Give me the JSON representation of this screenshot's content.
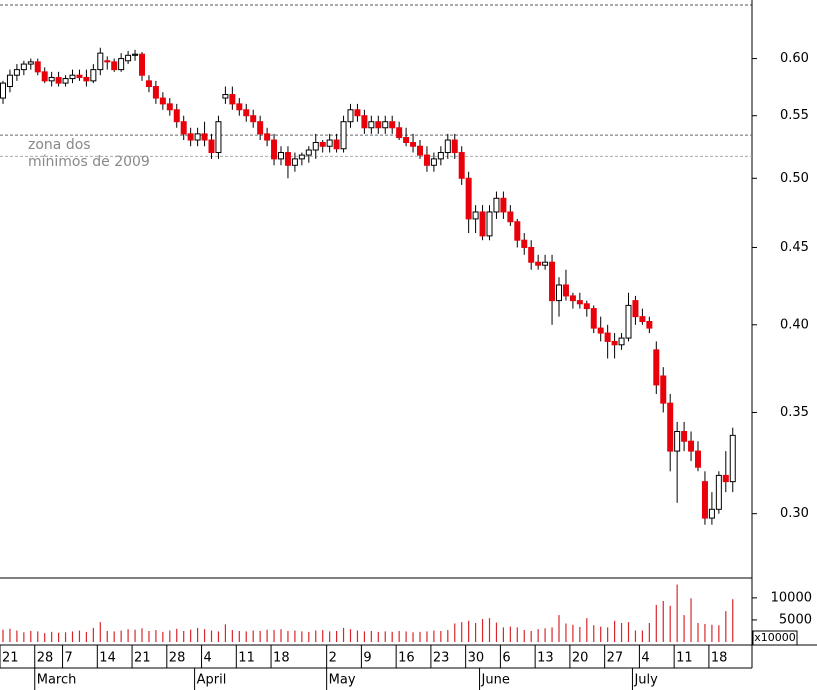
{
  "chart_data": {
    "type": "candlestick",
    "annotations": [
      "zona dos",
      "mínimos de 2009"
    ],
    "hlines": [
      0.534,
      0.517
    ],
    "ylim": [
      0.272,
      0.656
    ],
    "log_scale": true,
    "yticks": [
      {
        "value": 0.3,
        "label": "0.30"
      },
      0.35,
      {
        "value": 0.4,
        "label": "0.40"
      },
      0.45,
      {
        "value": 0.5,
        "label": "0.50"
      },
      0.55,
      {
        "value": 0.6,
        "label": "0.60"
      }
    ],
    "up_color": "#ffffff",
    "down_color": "#e8000b",
    "open": [
      0.565,
      0.575,
      0.585,
      0.59,
      0.595,
      0.597,
      0.588,
      0.58,
      0.583,
      0.578,
      0.582,
      0.585,
      0.583,
      0.58,
      0.59,
      0.598,
      0.597,
      0.59,
      0.598,
      0.603,
      0.604,
      0.58,
      0.575,
      0.565,
      0.56,
      0.555,
      0.545,
      0.535,
      0.53,
      0.535,
      0.53,
      0.52,
      0.565,
      0.568,
      0.56,
      0.555,
      0.55,
      0.545,
      0.535,
      0.53,
      0.515,
      0.52,
      0.51,
      0.515,
      0.518,
      0.522,
      0.528,
      0.525,
      0.53,
      0.523,
      0.545,
      0.555,
      0.55,
      0.54,
      0.545,
      0.54,
      0.545,
      0.54,
      0.532,
      0.528,
      0.525,
      0.518,
      0.51,
      0.515,
      0.52,
      0.53,
      0.52,
      0.5,
      0.47,
      0.475,
      0.458,
      0.475,
      0.485,
      0.475,
      0.468,
      0.455,
      0.45,
      0.44,
      0.438,
      0.44,
      0.415,
      0.425,
      0.418,
      0.415,
      0.413,
      0.41,
      0.398,
      0.395,
      0.39,
      0.388,
      0.392,
      0.415,
      0.405,
      0.402,
      0.385,
      0.37,
      0.355,
      0.33,
      0.34,
      0.335,
      0.33,
      0.315,
      0.298,
      0.302,
      0.318,
      0.315
    ],
    "high": [
      0.58,
      0.59,
      0.595,
      0.598,
      0.6,
      0.6,
      0.592,
      0.588,
      0.588,
      0.585,
      0.59,
      0.59,
      0.59,
      0.595,
      0.61,
      0.602,
      0.6,
      0.605,
      0.607,
      0.608,
      0.606,
      0.585,
      0.58,
      0.57,
      0.565,
      0.56,
      0.55,
      0.54,
      0.54,
      0.545,
      0.535,
      0.55,
      0.575,
      0.575,
      0.565,
      0.56,
      0.555,
      0.55,
      0.54,
      0.535,
      0.525,
      0.525,
      0.52,
      0.52,
      0.525,
      0.535,
      0.53,
      0.535,
      0.535,
      0.55,
      0.56,
      0.56,
      0.555,
      0.55,
      0.55,
      0.55,
      0.55,
      0.545,
      0.54,
      0.535,
      0.53,
      0.525,
      0.52,
      0.525,
      0.535,
      0.535,
      0.525,
      0.505,
      0.48,
      0.48,
      0.48,
      0.49,
      0.49,
      0.48,
      0.47,
      0.46,
      0.455,
      0.445,
      0.445,
      0.445,
      0.43,
      0.435,
      0.42,
      0.42,
      0.415,
      0.412,
      0.405,
      0.4,
      0.395,
      0.395,
      0.42,
      0.418,
      0.41,
      0.405,
      0.39,
      0.375,
      0.36,
      0.345,
      0.345,
      0.34,
      0.335,
      0.32,
      0.31,
      0.32,
      0.33,
      0.342
    ],
    "low": [
      0.56,
      0.57,
      0.58,
      0.585,
      0.59,
      0.585,
      0.578,
      0.575,
      0.575,
      0.575,
      0.578,
      0.58,
      0.575,
      0.578,
      0.585,
      0.59,
      0.588,
      0.588,
      0.595,
      0.598,
      0.58,
      0.57,
      0.56,
      0.555,
      0.55,
      0.54,
      0.53,
      0.525,
      0.525,
      0.525,
      0.515,
      0.515,
      0.56,
      0.555,
      0.55,
      0.545,
      0.54,
      0.53,
      0.525,
      0.51,
      0.51,
      0.5,
      0.505,
      0.51,
      0.512,
      0.515,
      0.52,
      0.52,
      0.52,
      0.52,
      0.54,
      0.545,
      0.535,
      0.535,
      0.535,
      0.535,
      0.535,
      0.53,
      0.525,
      0.52,
      0.515,
      0.505,
      0.505,
      0.51,
      0.515,
      0.515,
      0.495,
      0.46,
      0.46,
      0.455,
      0.455,
      0.47,
      0.47,
      0.465,
      0.45,
      0.445,
      0.435,
      0.435,
      0.435,
      0.4,
      0.405,
      0.415,
      0.41,
      0.41,
      0.405,
      0.395,
      0.39,
      0.38,
      0.38,
      0.385,
      0.39,
      0.4,
      0.4,
      0.395,
      0.36,
      0.35,
      0.32,
      0.305,
      0.33,
      0.325,
      0.32,
      0.295,
      0.295,
      0.3,
      0.31,
      0.31
    ],
    "close": [
      0.578,
      0.585,
      0.59,
      0.595,
      0.597,
      0.588,
      0.58,
      0.583,
      0.578,
      0.582,
      0.585,
      0.583,
      0.58,
      0.59,
      0.605,
      0.597,
      0.59,
      0.6,
      0.603,
      0.604,
      0.585,
      0.575,
      0.565,
      0.56,
      0.555,
      0.545,
      0.535,
      0.53,
      0.535,
      0.53,
      0.52,
      0.545,
      0.568,
      0.56,
      0.555,
      0.55,
      0.545,
      0.535,
      0.53,
      0.515,
      0.52,
      0.51,
      0.515,
      0.518,
      0.522,
      0.528,
      0.525,
      0.53,
      0.523,
      0.545,
      0.555,
      0.55,
      0.54,
      0.545,
      0.54,
      0.545,
      0.54,
      0.532,
      0.528,
      0.525,
      0.518,
      0.51,
      0.515,
      0.52,
      0.53,
      0.52,
      0.5,
      0.47,
      0.475,
      0.458,
      0.475,
      0.485,
      0.475,
      0.468,
      0.455,
      0.45,
      0.44,
      0.438,
      0.44,
      0.415,
      0.425,
      0.418,
      0.415,
      0.413,
      0.41,
      0.398,
      0.395,
      0.39,
      0.388,
      0.392,
      0.412,
      0.405,
      0.402,
      0.398,
      0.365,
      0.355,
      0.33,
      0.34,
      0.335,
      0.33,
      0.322,
      0.298,
      0.302,
      0.318,
      0.315,
      0.338
    ],
    "volume": {
      "color": "#d9262c",
      "ylim": [
        0,
        14500
      ],
      "yticks": [
        5000,
        10000
      ],
      "unit_label": "x10000",
      "values": [
        2800,
        3000,
        2600,
        2200,
        2500,
        2400,
        2000,
        2300,
        2100,
        2200,
        2400,
        2600,
        2300,
        3200,
        4500,
        2500,
        2400,
        2600,
        2900,
        2800,
        3100,
        2500,
        2700,
        2300,
        2600,
        3000,
        2500,
        2800,
        3200,
        2900,
        2600,
        2400,
        4000,
        2700,
        2500,
        2400,
        2600,
        2500,
        2800,
        2700,
        2900,
        2500,
        2600,
        2400,
        2300,
        2600,
        2700,
        2400,
        2500,
        3200,
        2900,
        2600,
        2400,
        2500,
        2300,
        2400,
        2300,
        2500,
        2400,
        2200,
        2300,
        2400,
        2600,
        2500,
        2700,
        4200,
        4500,
        4800,
        4300,
        5200,
        5400,
        4400,
        3300,
        3500,
        3300,
        2700,
        2500,
        2900,
        3100,
        3300,
        6100,
        4200,
        3900,
        3400,
        5400,
        3800,
        3500,
        3300,
        4800,
        4300,
        4500,
        2600,
        2600,
        4300,
        8400,
        9300,
        8200,
        13000,
        6100,
        9900,
        4300,
        4100,
        3900,
        3800,
        7000,
        9700
      ]
    },
    "xticks": [
      {
        "value": 0,
        "label": "21"
      },
      {
        "value": 5,
        "label": "28"
      },
      {
        "value": 9,
        "label": "7"
      },
      {
        "value": 14,
        "label": "14"
      },
      {
        "value": 19,
        "label": "21"
      },
      {
        "value": 24,
        "label": "28"
      },
      {
        "value": 29,
        "label": "4"
      },
      {
        "value": 34,
        "label": "11"
      },
      {
        "value": 39,
        "label": "18"
      },
      {
        "value": 47,
        "label": "2"
      },
      {
        "value": 52,
        "label": "9"
      },
      {
        "value": 57,
        "label": "16"
      },
      {
        "value": 62,
        "label": "23"
      },
      {
        "value": 67,
        "label": "30"
      },
      {
        "value": 72,
        "label": "6"
      },
      {
        "value": 77,
        "label": "13"
      },
      {
        "value": 82,
        "label": "20"
      },
      {
        "value": 87,
        "label": "27"
      },
      {
        "value": 92,
        "label": "4"
      },
      {
        "value": 97,
        "label": "11"
      },
      {
        "value": 102,
        "label": "18"
      }
    ],
    "months": [
      {
        "value": 5,
        "label": "March"
      },
      {
        "value": 28,
        "label": "April"
      },
      {
        "value": 47,
        "label": "May"
      },
      {
        "value": 69,
        "label": "June"
      },
      {
        "value": 91,
        "label": "July"
      }
    ]
  }
}
